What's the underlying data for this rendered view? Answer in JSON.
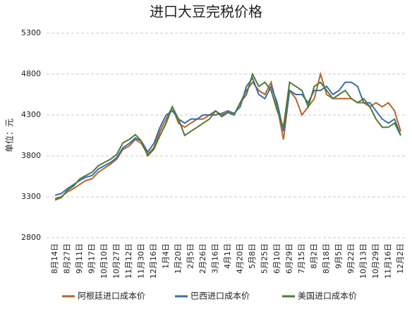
{
  "chart_data": {
    "type": "line",
    "title": "进口大豆完税价格",
    "y_label": "单位：元",
    "categories": [
      "8月14日",
      null,
      "8月27日",
      null,
      "9月11日",
      null,
      "9月17日",
      null,
      "10月10日",
      null,
      "10月27日",
      null,
      "11月12日",
      null,
      "11月30日",
      null,
      "12月16日",
      null,
      "1月4日",
      null,
      "1月20日",
      null,
      "2月5日",
      null,
      "2月26日",
      null,
      "3月16日",
      null,
      "4月1日",
      null,
      "4月20日",
      null,
      "5月8日",
      null,
      "5月25日",
      null,
      "6月10日",
      null,
      "6月29日",
      null,
      "7月15日",
      null,
      "8月2日",
      null,
      "8月18日",
      null,
      "9月5日",
      null,
      "9月22日",
      null,
      "10月13日",
      null,
      "10月29日",
      null,
      "11月16日",
      null,
      "12月2日"
    ],
    "series": [
      {
        "name": "阿根廷进口成本价",
        "color": "#b5652a",
        "values": [
          3280,
          3300,
          3360,
          3400,
          3450,
          3500,
          3520,
          3600,
          3650,
          3700,
          3760,
          3880,
          3920,
          4000,
          3950,
          3820,
          3900,
          4100,
          4250,
          4400,
          4200,
          4150,
          4200,
          4250,
          4250,
          4300,
          4350,
          4300,
          4330,
          4300,
          4450,
          4600,
          4700,
          4600,
          4550,
          4700,
          4400,
          4000,
          4600,
          4500,
          4300,
          4400,
          4500,
          4800,
          4550,
          4500,
          4500,
          4500,
          4500,
          4450,
          4450,
          4400,
          4450,
          4400,
          4450,
          4350,
          4100
        ]
      },
      {
        "name": "巴西进口成本价",
        "color": "#3a6db0",
        "values": [
          3320,
          3340,
          3400,
          3450,
          3500,
          3540,
          3560,
          3640,
          3680,
          3720,
          3780,
          3900,
          3950,
          4020,
          3980,
          3850,
          3950,
          4150,
          4300,
          4350,
          4250,
          4200,
          4250,
          4250,
          4300,
          4300,
          4300,
          4320,
          4350,
          4320,
          4400,
          4650,
          4750,
          4550,
          4500,
          4650,
          4450,
          4100,
          4600,
          4550,
          4550,
          4450,
          4600,
          4600,
          4650,
          4550,
          4600,
          4700,
          4700,
          4650,
          4450,
          4450,
          4350,
          4250,
          4200,
          4250,
          4050
        ]
      },
      {
        "name": "美国进口成本价",
        "color": "#4e7a3a",
        "values": [
          3260,
          3290,
          3380,
          3430,
          3520,
          3560,
          3600,
          3680,
          3720,
          3760,
          3820,
          3960,
          4000,
          4060,
          3980,
          3800,
          3880,
          4050,
          4200,
          4400,
          4250,
          4050,
          4100,
          4150,
          4200,
          4250,
          4350,
          4280,
          4330,
          4300,
          4450,
          4550,
          4800,
          4650,
          4700,
          4600,
          4350,
          4150,
          4700,
          4650,
          4600,
          4400,
          4650,
          4700,
          4600,
          4500,
          4550,
          4600,
          4500,
          4450,
          4500,
          4400,
          4250,
          4150,
          4150,
          4200,
          4050
        ]
      }
    ],
    "ylim": [
      2800,
      5300
    ],
    "yticks": [
      2800,
      3300,
      3800,
      4300,
      4800,
      5300
    ],
    "grid": true,
    "legend": "bottom"
  }
}
